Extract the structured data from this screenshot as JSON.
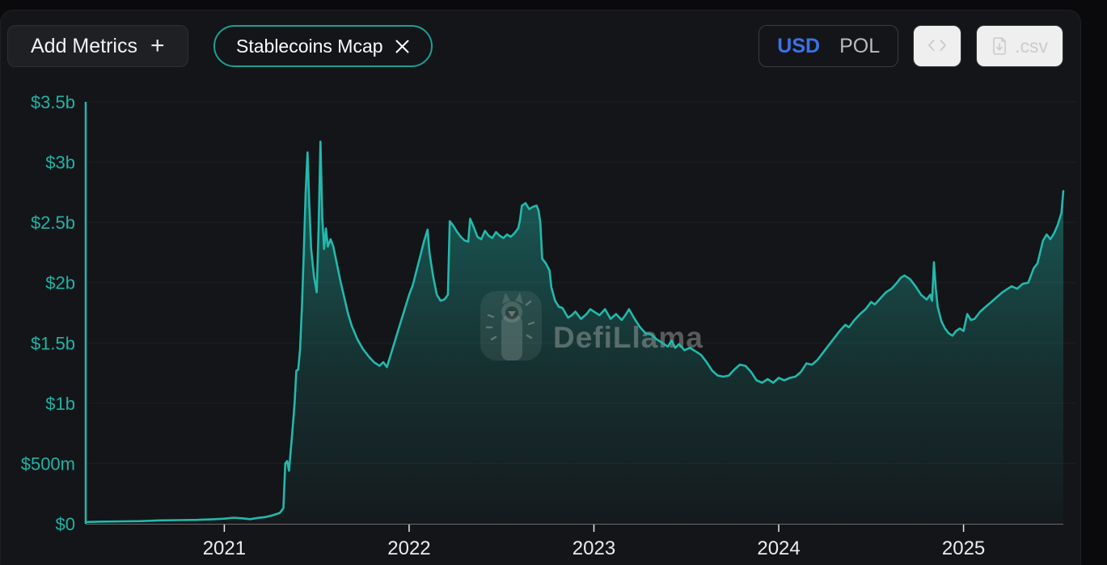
{
  "header": {
    "add_metrics_label": "Add Metrics",
    "add_metrics_plus": "+",
    "metric_pill": {
      "label": "Stablecoins Mcap"
    },
    "currency_toggle": {
      "options": [
        "USD",
        "POL"
      ],
      "selected": "USD"
    },
    "csv_button_label": ".csv"
  },
  "watermark": {
    "text": "DefiLlama"
  },
  "colors": {
    "accent_teal": "#22b9ac",
    "axis_label_teal": "#1fb3a6",
    "usd_blue": "#3b72e8",
    "pill_border": "#1aa093",
    "x_label": "#eaecee",
    "grid": "rgba(255,255,255,0.05)",
    "axis_line": "rgba(235,235,235,0.4)"
  },
  "chart_data": {
    "type": "area",
    "title": "Stablecoins Mcap",
    "unit": "USD billions",
    "legend": [
      "Stablecoins Mcap"
    ],
    "grid": true,
    "x_domain": [
      2020.25,
      2025.54
    ],
    "y_domain": [
      0,
      3.5
    ],
    "x_tick_values": [
      2021,
      2022,
      2023,
      2024,
      2025
    ],
    "x_ticks": [
      "2021",
      "2022",
      "2023",
      "2024",
      "2025"
    ],
    "y_tick_values": [
      3.5,
      3,
      2.5,
      2,
      1.5,
      1,
      0.5,
      0
    ],
    "y_ticks": [
      "$3.5b",
      "$3b",
      "$2.5b",
      "$2b",
      "$1.5b",
      "$1b",
      "$500m",
      "$0"
    ],
    "series": [
      {
        "name": "Stablecoins Mcap",
        "points": [
          [
            2020.25,
            0.015
          ],
          [
            2020.35,
            0.018
          ],
          [
            2020.45,
            0.02
          ],
          [
            2020.55,
            0.022
          ],
          [
            2020.65,
            0.028
          ],
          [
            2020.75,
            0.03
          ],
          [
            2020.85,
            0.032
          ],
          [
            2020.95,
            0.038
          ],
          [
            2021.0,
            0.042
          ],
          [
            2021.05,
            0.05
          ],
          [
            2021.1,
            0.045
          ],
          [
            2021.14,
            0.038
          ],
          [
            2021.18,
            0.048
          ],
          [
            2021.22,
            0.055
          ],
          [
            2021.26,
            0.07
          ],
          [
            2021.3,
            0.09
          ],
          [
            2021.32,
            0.13
          ],
          [
            2021.33,
            0.5
          ],
          [
            2021.34,
            0.52
          ],
          [
            2021.35,
            0.44
          ],
          [
            2021.36,
            0.62
          ],
          [
            2021.37,
            0.8
          ],
          [
            2021.38,
            1.0
          ],
          [
            2021.39,
            1.27
          ],
          [
            2021.4,
            1.28
          ],
          [
            2021.41,
            1.45
          ],
          [
            2021.42,
            1.8
          ],
          [
            2021.43,
            2.25
          ],
          [
            2021.44,
            2.75
          ],
          [
            2021.45,
            3.08
          ],
          [
            2021.46,
            2.65
          ],
          [
            2021.47,
            2.28
          ],
          [
            2021.485,
            2.05
          ],
          [
            2021.5,
            1.92
          ],
          [
            2021.51,
            2.45
          ],
          [
            2021.52,
            3.17
          ],
          [
            2021.53,
            2.55
          ],
          [
            2021.54,
            2.28
          ],
          [
            2021.55,
            2.45
          ],
          [
            2021.56,
            2.3
          ],
          [
            2021.575,
            2.36
          ],
          [
            2021.59,
            2.3
          ],
          [
            2021.61,
            2.15
          ],
          [
            2021.63,
            2.0
          ],
          [
            2021.65,
            1.87
          ],
          [
            2021.67,
            1.74
          ],
          [
            2021.69,
            1.64
          ],
          [
            2021.72,
            1.53
          ],
          [
            2021.75,
            1.45
          ],
          [
            2021.78,
            1.39
          ],
          [
            2021.81,
            1.34
          ],
          [
            2021.84,
            1.31
          ],
          [
            2021.86,
            1.34
          ],
          [
            2021.88,
            1.3
          ],
          [
            2021.9,
            1.4
          ],
          [
            2021.92,
            1.5
          ],
          [
            2021.94,
            1.6
          ],
          [
            2021.96,
            1.7
          ],
          [
            2021.98,
            1.8
          ],
          [
            2022.0,
            1.9
          ],
          [
            2022.02,
            1.98
          ],
          [
            2022.04,
            2.1
          ],
          [
            2022.06,
            2.22
          ],
          [
            2022.08,
            2.34
          ],
          [
            2022.1,
            2.44
          ],
          [
            2022.11,
            2.25
          ],
          [
            2022.13,
            2.05
          ],
          [
            2022.15,
            1.9
          ],
          [
            2022.17,
            1.85
          ],
          [
            2022.19,
            1.86
          ],
          [
            2022.21,
            1.9
          ],
          [
            2022.22,
            2.51
          ],
          [
            2022.24,
            2.47
          ],
          [
            2022.26,
            2.42
          ],
          [
            2022.28,
            2.38
          ],
          [
            2022.3,
            2.35
          ],
          [
            2022.32,
            2.34
          ],
          [
            2022.33,
            2.53
          ],
          [
            2022.35,
            2.46
          ],
          [
            2022.37,
            2.38
          ],
          [
            2022.39,
            2.36
          ],
          [
            2022.41,
            2.43
          ],
          [
            2022.43,
            2.39
          ],
          [
            2022.45,
            2.37
          ],
          [
            2022.47,
            2.42
          ],
          [
            2022.49,
            2.39
          ],
          [
            2022.51,
            2.37
          ],
          [
            2022.53,
            2.4
          ],
          [
            2022.55,
            2.38
          ],
          [
            2022.57,
            2.41
          ],
          [
            2022.59,
            2.45
          ],
          [
            2022.6,
            2.52
          ],
          [
            2022.61,
            2.64
          ],
          [
            2022.63,
            2.66
          ],
          [
            2022.65,
            2.61
          ],
          [
            2022.67,
            2.63
          ],
          [
            2022.69,
            2.64
          ],
          [
            2022.7,
            2.6
          ],
          [
            2022.71,
            2.5
          ],
          [
            2022.72,
            2.2
          ],
          [
            2022.74,
            2.16
          ],
          [
            2022.76,
            2.1
          ],
          [
            2022.77,
            1.96
          ],
          [
            2022.79,
            1.85
          ],
          [
            2022.81,
            1.8
          ],
          [
            2022.83,
            1.79
          ],
          [
            2022.86,
            1.71
          ],
          [
            2022.88,
            1.73
          ],
          [
            2022.9,
            1.76
          ],
          [
            2022.93,
            1.7
          ],
          [
            2022.96,
            1.74
          ],
          [
            2022.98,
            1.78
          ],
          [
            2023.0,
            1.76
          ],
          [
            2023.03,
            1.73
          ],
          [
            2023.06,
            1.78
          ],
          [
            2023.09,
            1.7
          ],
          [
            2023.12,
            1.74
          ],
          [
            2023.15,
            1.69
          ],
          [
            2023.17,
            1.73
          ],
          [
            2023.19,
            1.78
          ],
          [
            2023.22,
            1.7
          ],
          [
            2023.25,
            1.63
          ],
          [
            2023.28,
            1.58
          ],
          [
            2023.31,
            1.57
          ],
          [
            2023.34,
            1.53
          ],
          [
            2023.37,
            1.5
          ],
          [
            2023.4,
            1.47
          ],
          [
            2023.42,
            1.52
          ],
          [
            2023.44,
            1.46
          ],
          [
            2023.46,
            1.49
          ],
          [
            2023.49,
            1.44
          ],
          [
            2023.52,
            1.46
          ],
          [
            2023.55,
            1.43
          ],
          [
            2023.58,
            1.4
          ],
          [
            2023.61,
            1.34
          ],
          [
            2023.64,
            1.27
          ],
          [
            2023.67,
            1.23
          ],
          [
            2023.7,
            1.22
          ],
          [
            2023.73,
            1.23
          ],
          [
            2023.76,
            1.28
          ],
          [
            2023.79,
            1.32
          ],
          [
            2023.82,
            1.31
          ],
          [
            2023.85,
            1.26
          ],
          [
            2023.88,
            1.19
          ],
          [
            2023.91,
            1.17
          ],
          [
            2023.94,
            1.2
          ],
          [
            2023.97,
            1.17
          ],
          [
            2024.0,
            1.21
          ],
          [
            2024.03,
            1.19
          ],
          [
            2024.06,
            1.21
          ],
          [
            2024.09,
            1.22
          ],
          [
            2024.12,
            1.26
          ],
          [
            2024.15,
            1.33
          ],
          [
            2024.18,
            1.32
          ],
          [
            2024.21,
            1.36
          ],
          [
            2024.24,
            1.42
          ],
          [
            2024.27,
            1.48
          ],
          [
            2024.3,
            1.54
          ],
          [
            2024.33,
            1.6
          ],
          [
            2024.36,
            1.65
          ],
          [
            2024.38,
            1.63
          ],
          [
            2024.41,
            1.69
          ],
          [
            2024.44,
            1.74
          ],
          [
            2024.47,
            1.78
          ],
          [
            2024.5,
            1.84
          ],
          [
            2024.52,
            1.82
          ],
          [
            2024.55,
            1.87
          ],
          [
            2024.58,
            1.92
          ],
          [
            2024.61,
            1.95
          ],
          [
            2024.64,
            2.0
          ],
          [
            2024.66,
            2.04
          ],
          [
            2024.68,
            2.06
          ],
          [
            2024.71,
            2.03
          ],
          [
            2024.74,
            1.97
          ],
          [
            2024.77,
            1.9
          ],
          [
            2024.8,
            1.86
          ],
          [
            2024.82,
            1.9
          ],
          [
            2024.83,
            1.85
          ],
          [
            2024.84,
            2.17
          ],
          [
            2024.85,
            1.95
          ],
          [
            2024.86,
            1.8
          ],
          [
            2024.88,
            1.68
          ],
          [
            2024.9,
            1.62
          ],
          [
            2024.92,
            1.58
          ],
          [
            2024.94,
            1.56
          ],
          [
            2024.96,
            1.6
          ],
          [
            2024.98,
            1.62
          ],
          [
            2025.0,
            1.6
          ],
          [
            2025.02,
            1.74
          ],
          [
            2025.04,
            1.69
          ],
          [
            2025.06,
            1.7
          ],
          [
            2025.09,
            1.76
          ],
          [
            2025.12,
            1.8
          ],
          [
            2025.15,
            1.84
          ],
          [
            2025.18,
            1.88
          ],
          [
            2025.21,
            1.92
          ],
          [
            2025.24,
            1.95
          ],
          [
            2025.26,
            1.97
          ],
          [
            2025.29,
            1.95
          ],
          [
            2025.32,
            1.99
          ],
          [
            2025.35,
            2.0
          ],
          [
            2025.38,
            2.12
          ],
          [
            2025.4,
            2.16
          ],
          [
            2025.43,
            2.35
          ],
          [
            2025.45,
            2.4
          ],
          [
            2025.47,
            2.36
          ],
          [
            2025.49,
            2.41
          ],
          [
            2025.51,
            2.48
          ],
          [
            2025.53,
            2.58
          ],
          [
            2025.54,
            2.76
          ]
        ]
      }
    ]
  }
}
